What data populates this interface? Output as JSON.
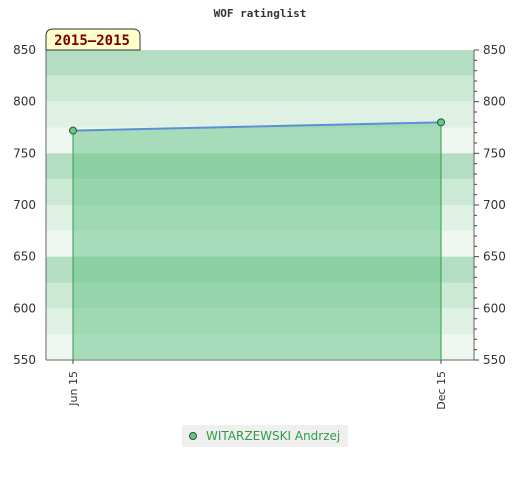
{
  "chart_data": {
    "type": "area",
    "title": "WOF ratinglist",
    "period_label": "2015–2015",
    "categories": [
      "Jun 15",
      "Dec 15"
    ],
    "series": [
      {
        "name": "WITARZEWSKI Andrzej",
        "values": [
          772,
          780
        ]
      }
    ],
    "ylim": [
      550,
      850
    ],
    "yticks": [
      550,
      600,
      650,
      700,
      750,
      800,
      850
    ],
    "grid": true,
    "legend": "bottom",
    "colors": {
      "line": "#5b8fd6",
      "area": "#6cc48a",
      "area_edge": "#2e9e45",
      "point": "#6cc48a",
      "legend_text": "#2e9e45",
      "band_dark": "#b3dec3",
      "band_mid": "#cbe9d5",
      "band_light": "#def1e4",
      "band_pale": "#eef8f1"
    }
  }
}
